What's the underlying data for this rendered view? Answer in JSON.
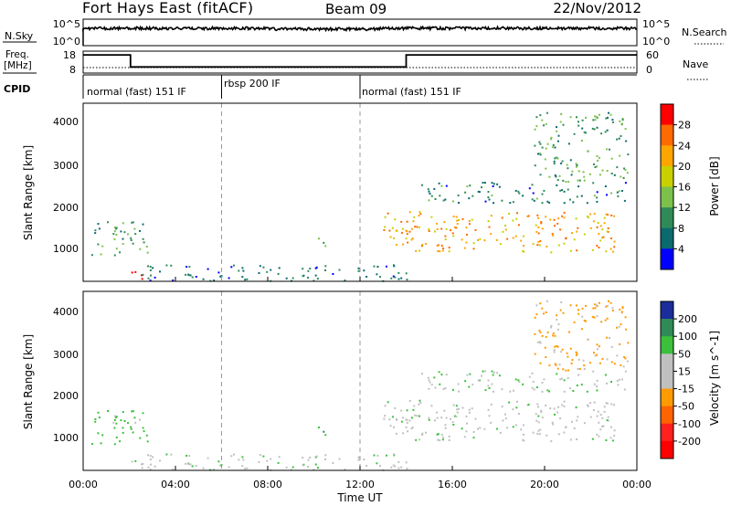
{
  "chart_data": {
    "type": "heatmap",
    "header": {
      "station": "Fort Hays East (fitACF)",
      "beam": "Beam 09",
      "date": "22/Nov/2012"
    },
    "noise_panel": {
      "left_label": "N.Sky",
      "left_ticks": [
        "10^5",
        "10^0"
      ],
      "right_label": "N.Search",
      "right_ticks": [
        "10^5",
        "10^0"
      ]
    },
    "freq_panel": {
      "left_label_line1": "Freq.",
      "left_label_line2": "[MHz]",
      "left_ticks": [
        "18",
        "8"
      ],
      "right_label": "Nave",
      "right_ticks": [
        "60",
        "0"
      ],
      "freq_mhz": [
        {
          "t": 0.0,
          "v": 16.3
        },
        {
          "t": 2.05,
          "v": 16.3
        },
        {
          "t": 2.05,
          "v": 10.8
        },
        {
          "t": 14.0,
          "v": 10.8
        },
        {
          "t": 14.0,
          "v": 16.3
        },
        {
          "t": 24.0,
          "v": 16.3
        }
      ],
      "nave_level": 15
    },
    "cpid_label": "CPID",
    "cpid_segments": [
      {
        "start_h": 0,
        "end_h": 6,
        "label": "normal (fast) 151 IF"
      },
      {
        "start_h": 6,
        "end_h": 12,
        "label": "rbsp 200 IF"
      },
      {
        "start_h": 12,
        "end_h": 24,
        "label": "normal (fast) 151 IF"
      }
    ],
    "x_axis": {
      "xlabel": "Time UT",
      "xlim": [
        0,
        24
      ],
      "ticks": [
        "00:00",
        "04:00",
        "08:00",
        "12:00",
        "16:00",
        "20:00",
        "00:00"
      ],
      "dashed_markers_h": [
        6,
        12
      ]
    },
    "panels": [
      {
        "name": "power",
        "ylabel": "Slant Range [km]",
        "ylim": [
          180,
          4500
        ],
        "yticks": [
          "4000",
          "3000",
          "2000",
          "1000"
        ],
        "colorbar": {
          "label": "Power [dB]",
          "tick_labels": [
            "28",
            "24",
            "20",
            "16",
            "12",
            "8",
            "4"
          ],
          "colors": [
            "#ff0000",
            "#ff6a00",
            "#ffa500",
            "#c8d000",
            "#7cc24a",
            "#2e8b57",
            "#0b6a6e",
            "#0000ff"
          ]
        }
      },
      {
        "name": "velocity",
        "ylabel": "Slant Range [km]",
        "ylim": [
          180,
          4500
        ],
        "yticks": [
          "4000",
          "3000",
          "2000",
          "1000"
        ],
        "colorbar": {
          "label": "Velocity [m s^-1]",
          "tick_labels": [
            "200",
            "100",
            "50",
            "15",
            "-15",
            "-50",
            "-100",
            "-200"
          ],
          "colors": [
            "#1a2d9a",
            "#2e8b57",
            "#3cc03c",
            "#c0c0c0",
            "#c0c0c0",
            "#ff9a00",
            "#ff6400",
            "#ff2020",
            "#ff0000"
          ]
        }
      }
    ],
    "features": [
      {
        "name": "dawn-echo-patch",
        "t": [
          0.3,
          2.8
        ],
        "r": [
          800,
          1650
        ],
        "power": 10,
        "velocity": 45
      },
      {
        "name": "sloping-near-range",
        "t": [
          1.9,
          2.9
        ],
        "r": [
          220,
          450
        ],
        "power": 29,
        "velocity": 0
      },
      {
        "name": "ground-scatter-band",
        "t": [
          2.5,
          14.2
        ],
        "r": [
          200,
          600
        ],
        "power": 7,
        "velocity": 10
      },
      {
        "name": "mid-day-blob",
        "t": [
          10.1,
          10.8
        ],
        "r": [
          1050,
          1300
        ],
        "power": 11,
        "velocity": 60
      },
      {
        "name": "main-evening-echo",
        "t": [
          13.0,
          23.0
        ],
        "r": [
          900,
          1900
        ],
        "power": 22,
        "velocity": 5
      },
      {
        "name": "range-stripes",
        "t": [
          14.5,
          23.5
        ],
        "r": [
          2100,
          2600
        ],
        "power": 8,
        "velocity": 20
      },
      {
        "name": "high-range-arc",
        "t": [
          19.5,
          23.6
        ],
        "r": [
          2600,
          4300
        ],
        "power": 11,
        "velocity": -40
      }
    ]
  }
}
